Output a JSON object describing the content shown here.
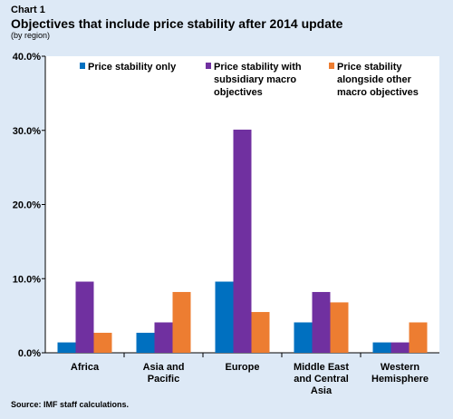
{
  "header": {
    "chart_label": "Chart 1",
    "title": "Objectives that include price stability after 2014 update",
    "subtitle": "(by region)"
  },
  "source": "Source: IMF staff calculations.",
  "colors": {
    "background": "#dde9f6",
    "series": [
      "#0070c0",
      "#7030a0",
      "#ed7d31"
    ]
  },
  "chart_data": {
    "type": "bar",
    "categories": [
      [
        "Africa"
      ],
      [
        "Asia and",
        "Pacific"
      ],
      [
        "Europe"
      ],
      [
        "Middle East",
        "and Central",
        "Asia"
      ],
      [
        "Western",
        "Hemisphere"
      ]
    ],
    "series": [
      {
        "name": "Price stability only",
        "values": [
          1.4,
          2.7,
          9.6,
          4.1,
          1.4
        ]
      },
      {
        "name": "Price stability with subsidiary macro objectives",
        "values": [
          9.6,
          4.1,
          30.1,
          8.2,
          1.4
        ]
      },
      {
        "name": "Price stability alongside other macro objectives",
        "values": [
          2.7,
          8.2,
          5.5,
          6.8,
          4.1
        ]
      }
    ],
    "legend": [
      [
        "Price stability only"
      ],
      [
        "Price stability with",
        "subsidiary macro",
        "objectives"
      ],
      [
        "Price stability",
        "alongside other",
        "macro objectives"
      ]
    ],
    "yticks": [
      "0.0%",
      "10.0%",
      "20.0%",
      "30.0%",
      "40.0%"
    ],
    "ylim": [
      0,
      40
    ],
    "legend_position": "top",
    "grid": false
  }
}
